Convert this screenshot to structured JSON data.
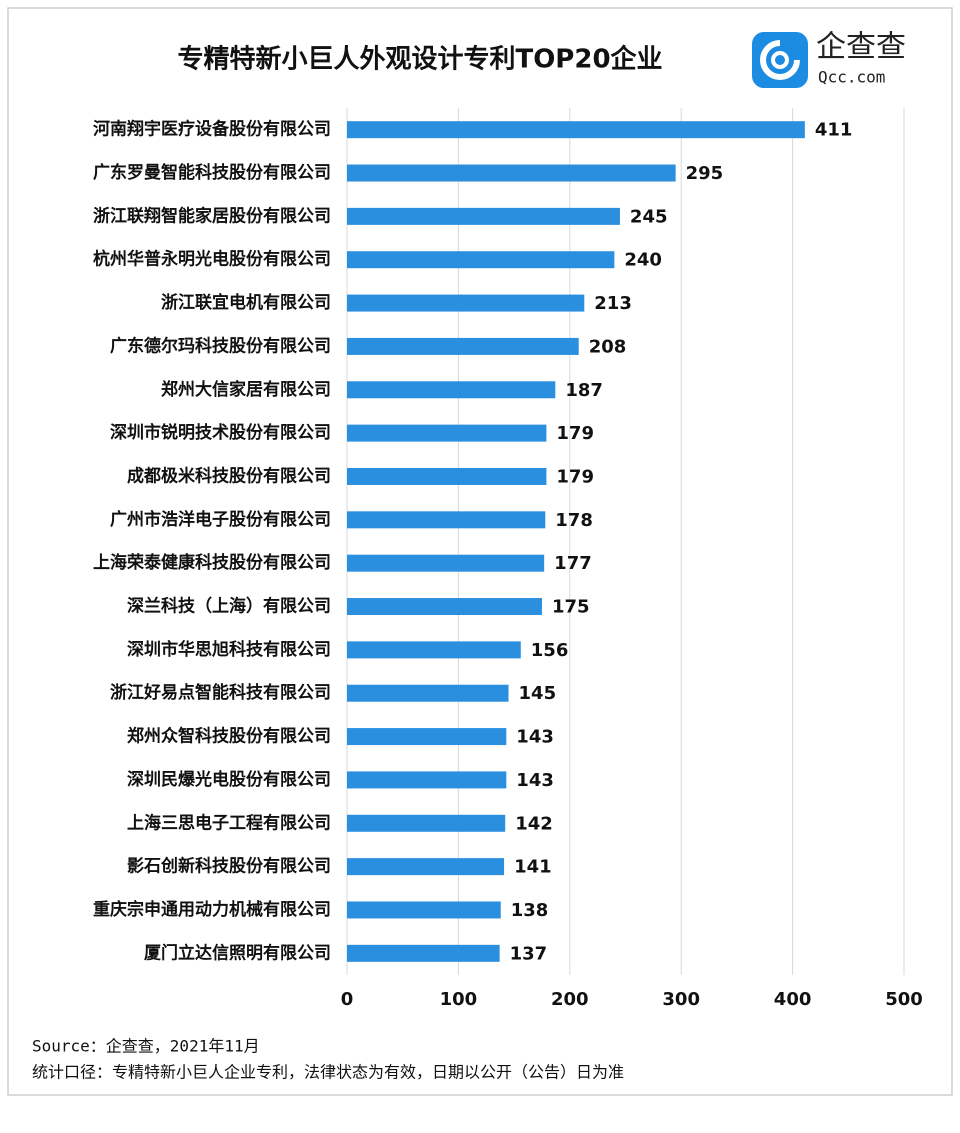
{
  "chart_data": {
    "type": "bar",
    "orientation": "horizontal",
    "title": "专精特新小巨人外观设计专利TOP20企业",
    "logo": {
      "name": "企查查",
      "site": "Qcc.com"
    },
    "categories": [
      "河南翔宇医疗设备股份有限公司",
      "广东罗曼智能科技股份有限公司",
      "浙江联翔智能家居股份有限公司",
      "杭州华普永明光电股份有限公司",
      "浙江联宜电机有限公司",
      "广东德尔玛科技股份有限公司",
      "郑州大信家居有限公司",
      "深圳市锐明技术股份有限公司",
      "成都极米科技股份有限公司",
      "广州市浩洋电子股份有限公司",
      "上海荣泰健康科技股份有限公司",
      "深兰科技（上海）有限公司",
      "深圳市华思旭科技有限公司",
      "浙江好易点智能科技有限公司",
      "郑州众智科技股份有限公司",
      "深圳民爆光电股份有限公司",
      "上海三思电子工程有限公司",
      "影石创新科技股份有限公司",
      "重庆宗申通用动力机械有限公司",
      "厦门立达信照明有限公司"
    ],
    "values": [
      411,
      295,
      245,
      240,
      213,
      208,
      187,
      179,
      179,
      178,
      177,
      175,
      156,
      145,
      143,
      143,
      142,
      141,
      138,
      137
    ],
    "color": "#2b8fe0",
    "xlim": [
      0,
      500
    ],
    "xticks": [
      0,
      100,
      200,
      300,
      400,
      500
    ],
    "grid": true,
    "source": "Source：企查查，2021年11月",
    "note": "统计口径：专精特新小巨人企业专利，法律状态为有效，日期以公开（公告）日为准"
  }
}
